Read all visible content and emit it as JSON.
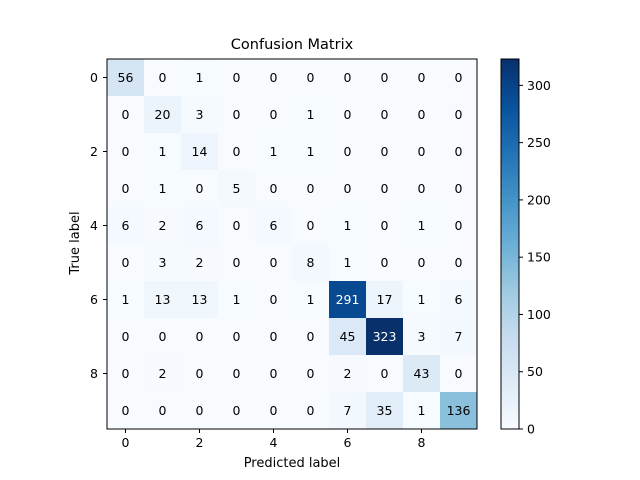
{
  "chart_data": {
    "type": "heatmap",
    "title": "Confusion Matrix",
    "xlabel": "Predicted label",
    "ylabel": "True label",
    "colormap": "Blues",
    "colormap_stops": [
      "#f7fbff",
      "#deebf7",
      "#c6dbef",
      "#9ecae1",
      "#6baed6",
      "#4292c6",
      "#2171b5",
      "#08519c",
      "#08306b"
    ],
    "x_ticks": [
      0,
      2,
      4,
      6,
      8
    ],
    "y_ticks": [
      0,
      2,
      4,
      6,
      8
    ],
    "matrix": [
      [
        56,
        0,
        1,
        0,
        0,
        0,
        0,
        0,
        0,
        0
      ],
      [
        0,
        20,
        3,
        0,
        0,
        1,
        0,
        0,
        0,
        0
      ],
      [
        0,
        1,
        14,
        0,
        1,
        1,
        0,
        0,
        0,
        0
      ],
      [
        0,
        1,
        0,
        5,
        0,
        0,
        0,
        0,
        0,
        0
      ],
      [
        6,
        2,
        6,
        0,
        6,
        0,
        1,
        0,
        1,
        0
      ],
      [
        0,
        3,
        2,
        0,
        0,
        8,
        1,
        0,
        0,
        0
      ],
      [
        1,
        13,
        13,
        1,
        0,
        1,
        291,
        17,
        1,
        6
      ],
      [
        0,
        0,
        0,
        0,
        0,
        0,
        45,
        323,
        3,
        7
      ],
      [
        0,
        2,
        0,
        0,
        0,
        0,
        2,
        0,
        43,
        0
      ],
      [
        0,
        0,
        0,
        0,
        0,
        0,
        7,
        35,
        1,
        136
      ]
    ],
    "value_range": [
      0,
      323
    ],
    "colorbar_ticks": [
      0,
      50,
      100,
      150,
      200,
      250,
      300
    ]
  }
}
